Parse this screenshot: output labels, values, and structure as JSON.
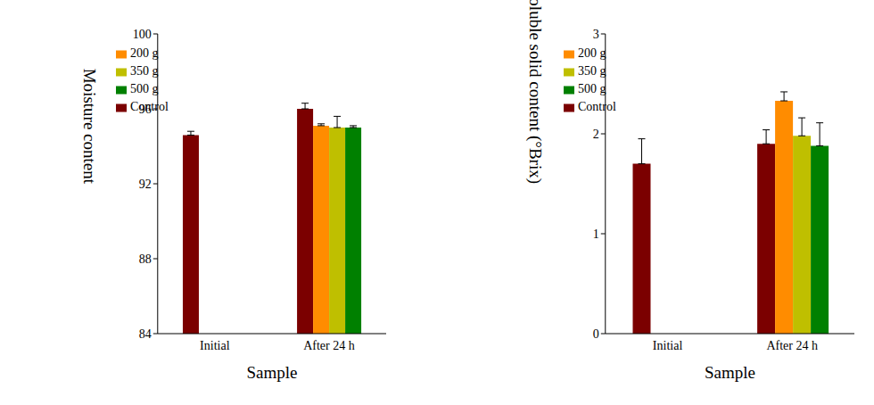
{
  "chart_data": [
    {
      "type": "bar",
      "x_label": "Sample",
      "y_label": "Moisture content",
      "categories": [
        "Initial",
        "After 24 h"
      ],
      "ylim": [
        84,
        100
      ],
      "yticks": [
        84,
        88,
        92,
        96,
        100
      ],
      "legend": "upper left",
      "grid": false,
      "series": [
        {
          "name": "Control",
          "color": "#7b0000",
          "values": [
            94.6,
            96.0
          ],
          "errors": [
            0.2,
            0.3
          ]
        },
        {
          "name": "200 g",
          "color": "#ff8c00",
          "values": [
            null,
            95.1
          ],
          "errors": [
            null,
            0.1
          ]
        },
        {
          "name": "350 g",
          "color": "#bfbf00",
          "values": [
            null,
            95.0
          ],
          "errors": [
            null,
            0.6
          ]
        },
        {
          "name": "500 g",
          "color": "#008000",
          "values": [
            null,
            95.0
          ],
          "errors": [
            null,
            0.1
          ]
        }
      ]
    },
    {
      "type": "bar",
      "x_label": "Sample",
      "y_label": "Soluble solid content (°Brix)",
      "categories": [
        "Initial",
        "After 24 h"
      ],
      "ylim": [
        0,
        3
      ],
      "yticks": [
        0,
        1,
        2,
        3
      ],
      "legend": "upper left",
      "grid": false,
      "series": [
        {
          "name": "Control",
          "color": "#7b0000",
          "values": [
            1.7,
            1.9
          ],
          "errors": [
            0.25,
            0.14
          ]
        },
        {
          "name": "200 g",
          "color": "#ff8c00",
          "values": [
            null,
            2.33
          ],
          "errors": [
            null,
            0.09
          ]
        },
        {
          "name": "350 g",
          "color": "#bfbf00",
          "values": [
            null,
            1.98
          ],
          "errors": [
            null,
            0.18
          ]
        },
        {
          "name": "500 g",
          "color": "#008000",
          "values": [
            null,
            1.88
          ],
          "errors": [
            null,
            0.23
          ]
        }
      ]
    }
  ]
}
